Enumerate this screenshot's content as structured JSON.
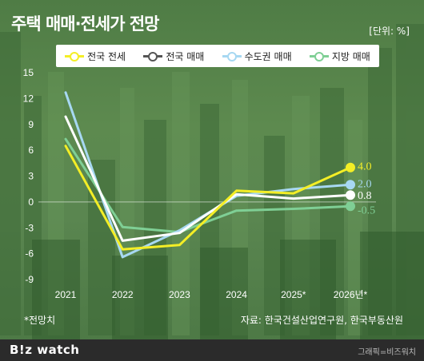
{
  "header": {
    "title": "주택 매매·전세가 전망",
    "unit": "[단위: %]"
  },
  "footer": {
    "note": "*전망치",
    "source": "자료: 한국건설산업연구원, 한국부동산원",
    "brand": "B!z watch",
    "credit": "그래픽=비즈워치"
  },
  "colors": {
    "national_jeonse": "#f4ee26",
    "national_sale": "#ffffff",
    "capital_sale": "#a7d8f2",
    "regional_sale": "#7fcf95"
  },
  "chart_data": {
    "type": "line",
    "title": "주택 매매·전세가 전망",
    "categories": [
      "2021",
      "2022",
      "2023",
      "2024",
      "2025*",
      "2026년*"
    ],
    "yticks": [
      "15",
      "12",
      "9",
      "6",
      "3",
      "0",
      "-3",
      "-6",
      "-9"
    ],
    "ylim": [
      -9,
      15
    ],
    "grid": false,
    "legend_position": "top",
    "series": [
      {
        "name": "전국 전세",
        "color": "#f4ee26",
        "values": [
          6.5,
          -5.5,
          -5.0,
          1.3,
          1.0,
          4.0
        ],
        "end_label": "4.0"
      },
      {
        "name": "전국 매매",
        "color": "#ffffff",
        "values": [
          9.9,
          -4.5,
          -3.6,
          0.9,
          0.4,
          0.8
        ],
        "end_label": "0.8"
      },
      {
        "name": "수도권 매매",
        "color": "#a7d8f2",
        "values": [
          12.7,
          -6.4,
          -3.3,
          0.7,
          1.5,
          2.0
        ],
        "end_label": "2.0"
      },
      {
        "name": "지방 매매",
        "color": "#7fcf95",
        "values": [
          7.3,
          -2.9,
          -3.5,
          -1.0,
          -0.8,
          -0.5
        ],
        "end_label": "-0.5"
      }
    ]
  }
}
